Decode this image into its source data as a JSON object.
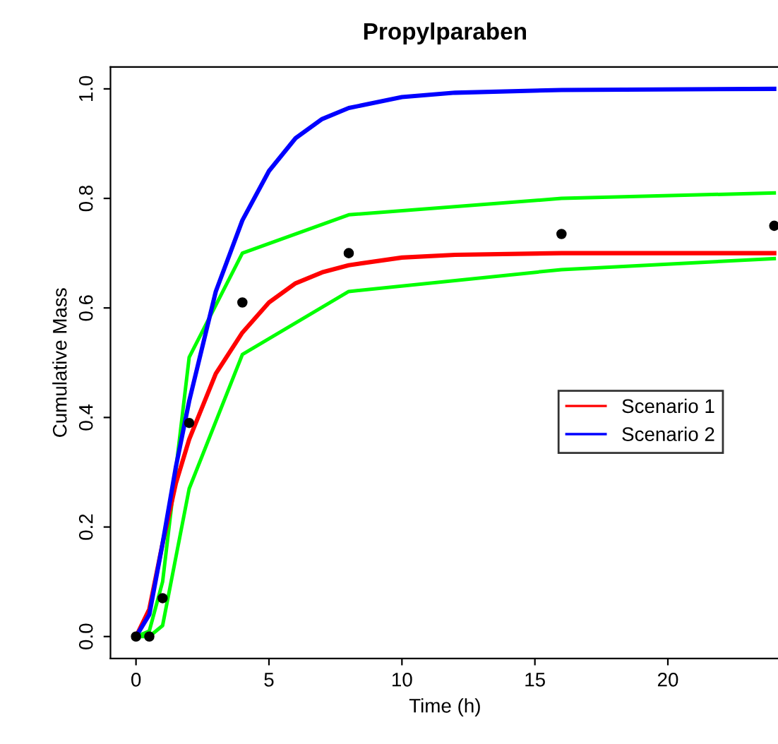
{
  "chart_data": {
    "type": "line",
    "title": "Propylparaben",
    "xlabel": "Time (h)",
    "ylabel": "Cumulative Mass",
    "xlim": [
      -0.96,
      24.2
    ],
    "ylim": [
      -0.04,
      1.04
    ],
    "xticks": [
      0,
      5,
      10,
      15,
      20
    ],
    "yticks": [
      {
        "value": 0,
        "label": "0.0"
      },
      {
        "value": 0.2,
        "label": "0.2"
      },
      {
        "value": 0.4,
        "label": "0.4"
      },
      {
        "value": 0.6,
        "label": "0.6"
      },
      {
        "value": 0.8,
        "label": "0.8"
      },
      {
        "value": 1,
        "label": "1.0"
      }
    ],
    "grid": false,
    "legend": "right",
    "series": [
      {
        "color": "#00ff00",
        "x": [
          0,
          0.5,
          1,
          2,
          4,
          8,
          16,
          24
        ],
        "values": [
          0,
          0.01,
          0.1,
          0.51,
          0.7,
          0.77,
          0.8,
          0.81
        ]
      },
      {
        "color": "#00ff00",
        "x": [
          0,
          0.5,
          1,
          2,
          4,
          8,
          16,
          24
        ],
        "values": [
          0,
          0,
          0.02,
          0.27,
          0.515,
          0.63,
          0.67,
          0.69
        ]
      },
      {
        "name": "Scenario 1",
        "color": "#ff0000",
        "x": [
          0,
          0.5,
          1,
          1.5,
          2,
          3,
          4,
          5,
          6,
          7,
          8,
          10,
          12,
          16,
          24
        ],
        "values": [
          0,
          0.05,
          0.17,
          0.28,
          0.36,
          0.48,
          0.555,
          0.61,
          0.645,
          0.665,
          0.678,
          0.692,
          0.697,
          0.7,
          0.7
        ]
      },
      {
        "name": "Scenario 2",
        "color": "#0000ff",
        "x": [
          0,
          0.5,
          1,
          1.5,
          2,
          3,
          4,
          5,
          6,
          7,
          8,
          10,
          12,
          16,
          24
        ],
        "values": [
          0,
          0.04,
          0.17,
          0.31,
          0.43,
          0.63,
          0.76,
          0.85,
          0.91,
          0.945,
          0.965,
          0.985,
          0.993,
          0.998,
          1.0
        ]
      },
      {
        "type": "scatter",
        "color": "#000000",
        "marker": "circle",
        "x": [
          0,
          0.5,
          1,
          2,
          4,
          8,
          16,
          24
        ],
        "values": [
          0,
          0,
          0.07,
          0.39,
          0.61,
          0.7,
          0.735,
          0.75
        ]
      }
    ]
  }
}
